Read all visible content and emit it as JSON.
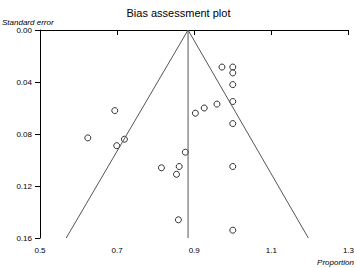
{
  "chart_data": {
    "type": "scatter",
    "title": "Bias assessment plot",
    "x_label": "Proportion",
    "y_label": "Standard error",
    "x": [
      0.972,
      1.0,
      1.0,
      1.0,
      0.694,
      1.0,
      0.959,
      0.926,
      0.903,
      1.0,
      0.624,
      0.719,
      0.699,
      0.877,
      0.815,
      0.861,
      0.854,
      1.0,
      0.859,
      1.0
    ],
    "values": [
      0.0285,
      0.0285,
      0.033,
      0.042,
      0.062,
      0.055,
      0.057,
      0.06,
      0.064,
      0.072,
      0.083,
      0.084,
      0.089,
      0.094,
      0.106,
      0.105,
      0.111,
      0.105,
      0.146,
      0.154
    ],
    "color": "#000000",
    "marker": "open_circle",
    "pooled": 0.884,
    "funnel_limits": [
      0.568,
      1.196
    ],
    "xlim": [
      0.5,
      1.3
    ],
    "xticks": [
      0.5,
      0.7,
      0.9,
      1.1,
      1.3
    ],
    "ylim": [
      0,
      0.16
    ],
    "yticks": [
      {
        "value": 0,
        "label": "0.00"
      },
      {
        "value": 0.04,
        "label": "0.04"
      },
      {
        "value": 0.08,
        "label": "0.08"
      },
      {
        "value": 0.12,
        "label": "0.12"
      },
      {
        "value": 0.16,
        "label": "0.16"
      }
    ],
    "grid": false
  }
}
